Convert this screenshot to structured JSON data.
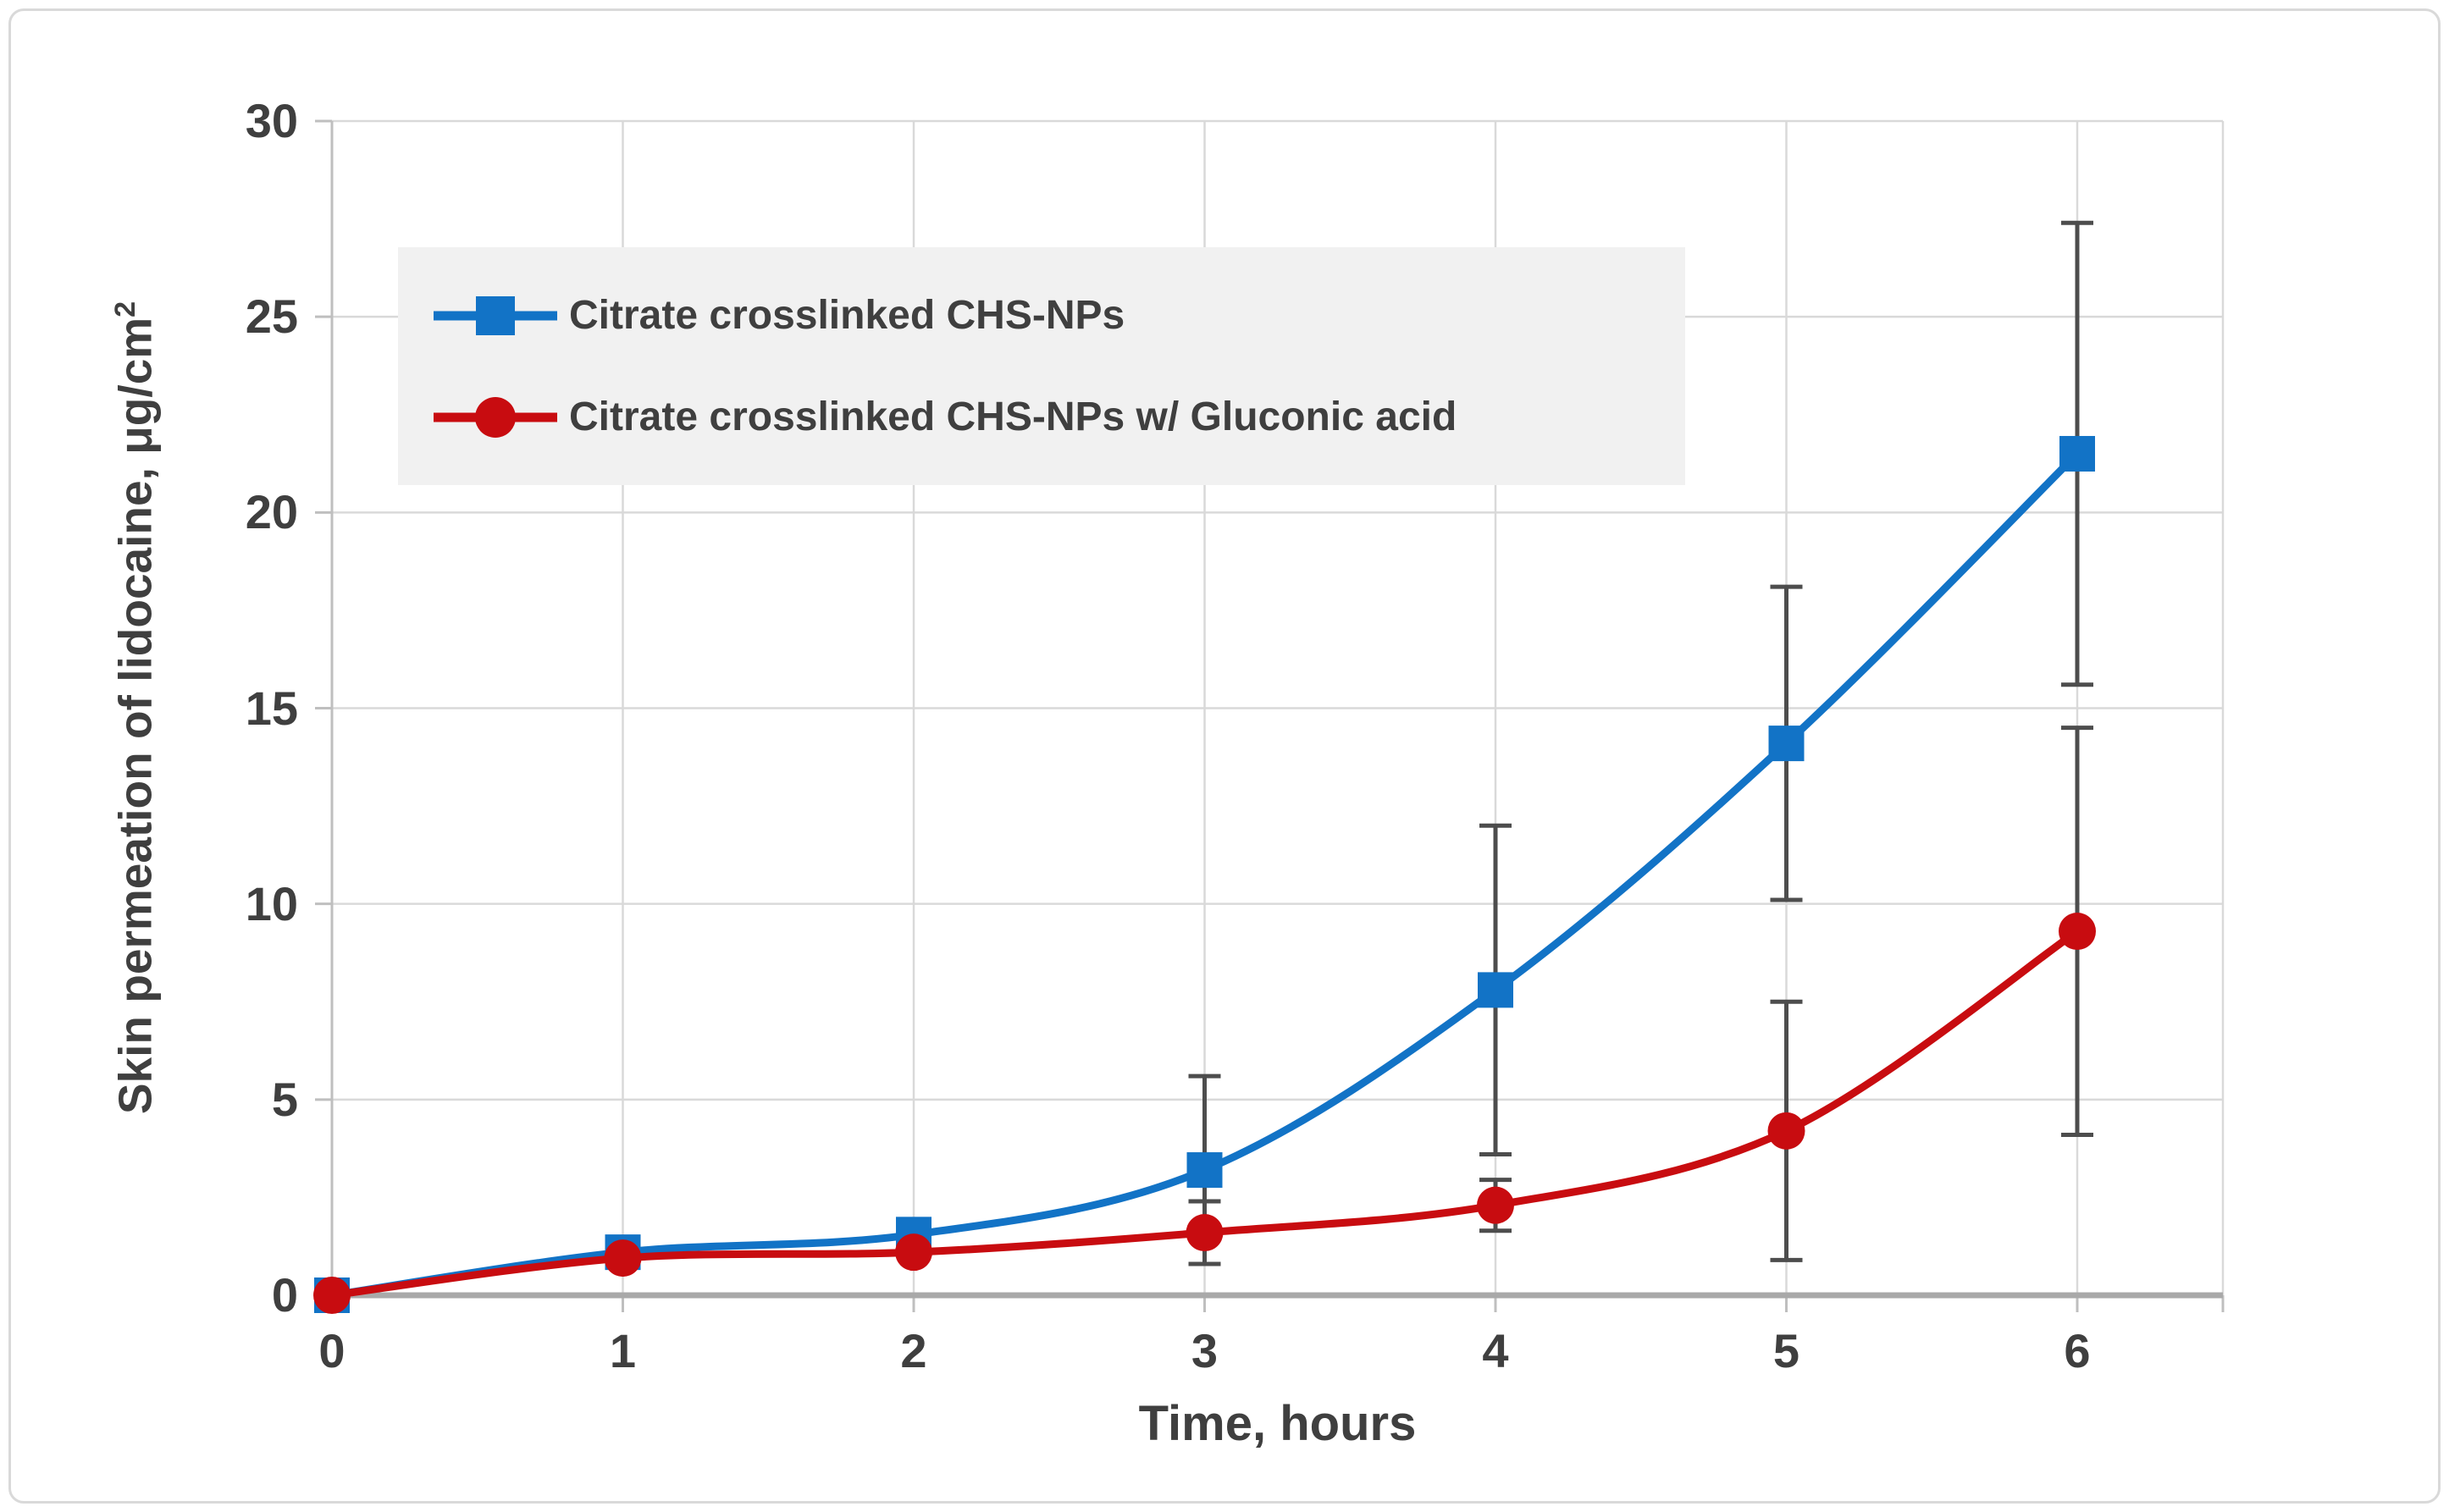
{
  "window": {
    "background": "#ffffff",
    "frame_border_color": "#d9d9d9"
  },
  "chart_data": {
    "type": "line",
    "title": "",
    "xlabel": "Time, hours",
    "ylabel_main": "Skin permeation of lidocaine, μg/cm",
    "ylabel_sup": "2",
    "x": [
      0,
      1,
      2,
      3,
      4,
      5,
      6
    ],
    "xticks": [
      0,
      1,
      2,
      3,
      4,
      5,
      6
    ],
    "yticks": [
      0,
      5,
      10,
      15,
      20,
      25,
      30
    ],
    "xlim": [
      0,
      6.5
    ],
    "ylim": [
      0,
      30
    ],
    "grid": true,
    "smooth_lines": true,
    "legend_position": "upper-left-inside",
    "series": [
      {
        "name": "Citrate crosslinked CHS-NPs",
        "color": "#1273c6",
        "marker": "square",
        "values": [
          0,
          1.1,
          1.55,
          3.2,
          7.8,
          14.1,
          21.5
        ],
        "error_bars": [
          0,
          0,
          0,
          2.4,
          4.2,
          4.0,
          5.9
        ]
      },
      {
        "name": "Citrate crosslinked CHS-NPs w/ Gluconic acid",
        "color": "#c80c10",
        "marker": "circle",
        "values": [
          0,
          0.95,
          1.1,
          1.6,
          2.3,
          4.2,
          9.3
        ],
        "error_bars": [
          0,
          0,
          0,
          0.8,
          0.65,
          3.3,
          5.2
        ]
      }
    ],
    "colors": {
      "grid": "#d9d9d9",
      "y_axis_line": "#bfbfbf",
      "x_axis_line": "#a9a9a9",
      "error_bar": "#4d4d4d",
      "text": "#3f3f3f",
      "legend_background": "#f1f1f1"
    }
  }
}
